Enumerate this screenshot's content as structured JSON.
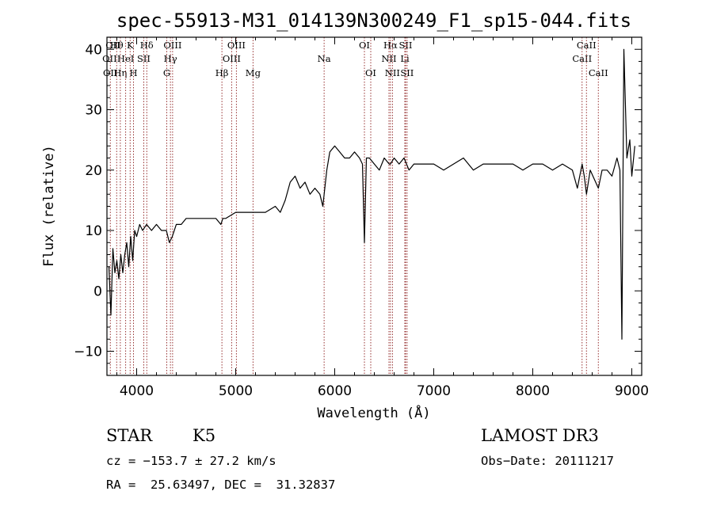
{
  "chart_data": {
    "type": "line",
    "title": "spec-55913-M31_014139N300249_F1_sp15-044.fits",
    "xlabel": "Wavelength (Å)",
    "ylabel": "Flux (relative)",
    "xlim": [
      3700,
      9100
    ],
    "ylim": [
      -14,
      42
    ],
    "xticks": [
      4000,
      5000,
      6000,
      7000,
      8000,
      9000
    ],
    "yticks": [
      -10,
      0,
      10,
      20,
      30,
      40
    ],
    "grid": false,
    "legend": "none",
    "series": [
      {
        "name": "flux",
        "x": [
          3720,
          3740,
          3760,
          3780,
          3800,
          3820,
          3840,
          3860,
          3880,
          3900,
          3920,
          3940,
          3960,
          3980,
          4000,
          4030,
          4060,
          4100,
          4150,
          4200,
          4250,
          4300,
          4330,
          4360,
          4400,
          4450,
          4500,
          4600,
          4700,
          4800,
          4850,
          4870,
          4900,
          5000,
          5100,
          5200,
          5300,
          5400,
          5450,
          5500,
          5550,
          5600,
          5650,
          5700,
          5750,
          5800,
          5850,
          5880,
          5900,
          5920,
          5950,
          6000,
          6050,
          6100,
          6150,
          6200,
          6250,
          6280,
          6300,
          6320,
          6350,
          6400,
          6450,
          6500,
          6550,
          6563,
          6600,
          6650,
          6700,
          6750,
          6800,
          6900,
          7000,
          7100,
          7200,
          7300,
          7400,
          7500,
          7600,
          7700,
          7800,
          7900,
          8000,
          8100,
          8200,
          8300,
          8400,
          8450,
          8498,
          8520,
          8542,
          8580,
          8662,
          8700,
          8750,
          8800,
          8850,
          8880,
          8900,
          8920,
          8950,
          8980,
          9000,
          9030
        ],
        "values": [
          4,
          -4,
          7,
          3,
          5,
          2,
          6,
          3,
          6,
          8,
          4,
          9,
          5,
          10,
          9,
          11,
          10,
          11,
          10,
          11,
          10,
          10,
          8,
          9,
          11,
          11,
          12,
          12,
          12,
          12,
          11,
          12,
          12,
          13,
          13,
          13,
          13,
          14,
          13,
          15,
          18,
          19,
          17,
          18,
          16,
          17,
          16,
          14,
          17,
          20,
          23,
          24,
          23,
          22,
          22,
          23,
          22,
          21,
          8,
          22,
          22,
          21,
          20,
          22,
          21,
          21,
          22,
          21,
          22,
          20,
          21,
          21,
          21,
          20,
          21,
          22,
          20,
          21,
          21,
          21,
          21,
          20,
          21,
          21,
          20,
          21,
          20,
          17,
          21,
          19,
          16,
          20,
          17,
          20,
          20,
          19,
          22,
          20,
          -8,
          40,
          22,
          25,
          19,
          24
        ]
      }
    ],
    "lines": [
      {
        "name": "Ca II H&K region",
        "wavelength": 3734,
        "row": 2,
        "label": "OII"
      },
      {
        "name": "H theta",
        "wavelength": 3798,
        "row": 0,
        "label": "Hθ"
      },
      {
        "name": "H eta",
        "wavelength": 3835,
        "row": 2,
        "label": "Hη"
      },
      {
        "name": "He I",
        "wavelength": 3889,
        "row": 1,
        "label": "HeI"
      },
      {
        "name": "K",
        "wavelength": 3934,
        "row": 0,
        "label": "K"
      },
      {
        "name": "H",
        "wavelength": 3968,
        "row": 2,
        "label": "H"
      },
      {
        "name": "S II",
        "wavelength": 4072,
        "row": 1,
        "label": "SII"
      },
      {
        "name": "H delta",
        "wavelength": 4102,
        "row": 0,
        "label": "Hδ"
      },
      {
        "name": "G band",
        "wavelength": 4304,
        "row": 2,
        "label": "G"
      },
      {
        "name": "H gamma",
        "wavelength": 4341,
        "row": 1,
        "label": "Hγ"
      },
      {
        "name": "O III 4363",
        "wavelength": 4363,
        "row": 0,
        "label": "OIII"
      },
      {
        "name": "H beta",
        "wavelength": 4861,
        "row": 2,
        "label": "Hβ"
      },
      {
        "name": "O III 4959",
        "wavelength": 4959,
        "row": 1,
        "label": "OIII"
      },
      {
        "name": "O III 5007",
        "wavelength": 5007,
        "row": 0,
        "label": "OIII"
      },
      {
        "name": "Mg",
        "wavelength": 5175,
        "row": 2,
        "label": "Mg"
      },
      {
        "name": "Na",
        "wavelength": 5893,
        "row": 1,
        "label": "Na"
      },
      {
        "name": "O I 6300",
        "wavelength": 6300,
        "row": 0,
        "label": "OI"
      },
      {
        "name": "O I 6364",
        "wavelength": 6364,
        "row": 2,
        "label": "OI"
      },
      {
        "name": "N II 6548",
        "wavelength": 6548,
        "row": 1,
        "label": "NII"
      },
      {
        "name": "H alpha",
        "wavelength": 6563,
        "row": 0,
        "label": "Hα"
      },
      {
        "name": "N II 6583",
        "wavelength": 6583,
        "row": 2,
        "label": "NII"
      },
      {
        "name": "Li",
        "wavelength": 6708,
        "row": 1,
        "label": "Li"
      },
      {
        "name": "S II 6716",
        "wavelength": 6716,
        "row": 0,
        "label": "SII"
      },
      {
        "name": "S II 6731",
        "wavelength": 6731,
        "row": 2,
        "label": "SII"
      },
      {
        "name": "Ca II 8498",
        "wavelength": 8498,
        "row": 1,
        "label": "CaII"
      },
      {
        "name": "Ca II 8542",
        "wavelength": 8542,
        "row": 0,
        "label": "CaII"
      },
      {
        "name": "Ca II 8662",
        "wavelength": 8662,
        "row": 2,
        "label": "CaII"
      }
    ],
    "extra_labels": [
      {
        "label": "OII",
        "row": 1,
        "wavelength": 3727
      },
      {
        "label": "OII",
        "row": 0,
        "wavelength": 3760
      }
    ]
  },
  "info": {
    "object_class": "STAR",
    "subclass": "K5",
    "survey": "LAMOST DR3",
    "cz": "cz = −153.7 ± 27.2 km/s",
    "obs_date": "Obs−Date: 20111217",
    "coords": "RA =  25.63497, DEC =  31.32837"
  },
  "colors": {
    "spectrum": "#000000",
    "line_markers": "#8b1a1a",
    "axes": "#000000"
  }
}
